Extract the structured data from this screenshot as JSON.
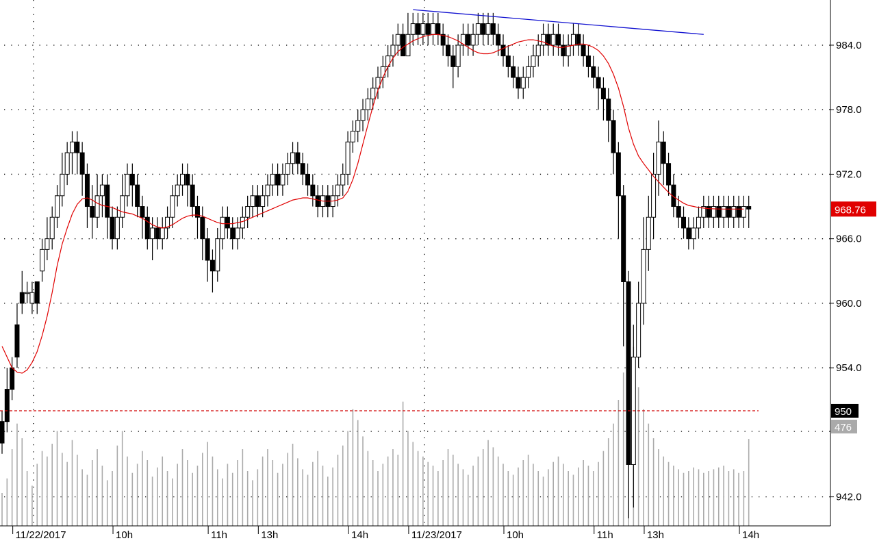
{
  "chart_data": {
    "type": "candlestick",
    "x_axis_labels": [
      {
        "text": "11/22/2017",
        "bar": 2
      },
      {
        "text": "10h",
        "bar": 22
      },
      {
        "text": "11h",
        "bar": 41
      },
      {
        "text": "13h",
        "bar": 51
      },
      {
        "text": "14h",
        "bar": 69
      },
      {
        "text": "11/23/2017",
        "bar": 81
      },
      {
        "text": "10h",
        "bar": 100
      },
      {
        "text": "11h",
        "bar": 118
      },
      {
        "text": "13h",
        "bar": 128
      },
      {
        "text": "14h",
        "bar": 147
      }
    ],
    "day_separators": [
      3,
      81
    ],
    "y_ticks": [
      942.0,
      954.0,
      960.0,
      966.0,
      972.0,
      978.0,
      984.0
    ],
    "price_range": [
      939.3,
      988.2
    ],
    "last_price_label": {
      "text": "968.76",
      "value": 968.76,
      "color": "#e00000"
    },
    "level_line": {
      "text": "950",
      "value": 950,
      "color": "#d00000"
    },
    "volume_label": {
      "text": "476",
      "value": 476
    },
    "volume_scale_max": 1200,
    "candles": [
      [
        949,
        947,
        950,
        946
      ],
      [
        952,
        949,
        954,
        948
      ],
      [
        954,
        952,
        955,
        951
      ],
      [
        958,
        955,
        960,
        954
      ],
      [
        961,
        960,
        963,
        959
      ],
      [
        961,
        961,
        962,
        960
      ],
      [
        960,
        961,
        962,
        959
      ],
      [
        962,
        960,
        962,
        959
      ],
      [
        963,
        965,
        966,
        962
      ],
      [
        965,
        966,
        968,
        964
      ],
      [
        966,
        968,
        969,
        965
      ],
      [
        968,
        970,
        971,
        967
      ],
      [
        970,
        972,
        974,
        969
      ],
      [
        972,
        974,
        975,
        971
      ],
      [
        974,
        975,
        976,
        972
      ],
      [
        975,
        974,
        976,
        972
      ],
      [
        974,
        972,
        975,
        970
      ],
      [
        972,
        969,
        973,
        967
      ],
      [
        969,
        968,
        971,
        966
      ],
      [
        968,
        970,
        972,
        967
      ],
      [
        970,
        971,
        972,
        968
      ],
      [
        971,
        968,
        972,
        966
      ],
      [
        968,
        966,
        969,
        965
      ],
      [
        966,
        968,
        969,
        965
      ],
      [
        968,
        970,
        972,
        967
      ],
      [
        970,
        972,
        973,
        969
      ],
      [
        972,
        971,
        973,
        969
      ],
      [
        971,
        969,
        972,
        968
      ],
      [
        969,
        968,
        970,
        966
      ],
      [
        968,
        966,
        969,
        965
      ],
      [
        966,
        967,
        968,
        964
      ],
      [
        967,
        966,
        968,
        965
      ],
      [
        966,
        967,
        968,
        965
      ],
      [
        967,
        968,
        969,
        966
      ],
      [
        968,
        970,
        971,
        967
      ],
      [
        970,
        971,
        972,
        969
      ],
      [
        971,
        972,
        973,
        970
      ],
      [
        972,
        971,
        973,
        969
      ],
      [
        971,
        969,
        972,
        968
      ],
      [
        969,
        968,
        970,
        966
      ],
      [
        968,
        966,
        969,
        964
      ],
      [
        966,
        964,
        967,
        962
      ],
      [
        964,
        963,
        965,
        961
      ],
      [
        963,
        966,
        967,
        962
      ],
      [
        966,
        968,
        969,
        965
      ],
      [
        968,
        967,
        969,
        966
      ],
      [
        967,
        966,
        968,
        965
      ],
      [
        966,
        967,
        968,
        965
      ],
      [
        967,
        968,
        969,
        966
      ],
      [
        968,
        969,
        970,
        967
      ],
      [
        969,
        970,
        971,
        968
      ],
      [
        970,
        969,
        971,
        968
      ],
      [
        969,
        970,
        971,
        968
      ],
      [
        970,
        971,
        972,
        969
      ],
      [
        971,
        972,
        973,
        970
      ],
      [
        972,
        971,
        973,
        970
      ],
      [
        971,
        972,
        973,
        970
      ],
      [
        972,
        973,
        974,
        971
      ],
      [
        973,
        974,
        975,
        972
      ],
      [
        974,
        973,
        975,
        972
      ],
      [
        973,
        972,
        974,
        971
      ],
      [
        972,
        971,
        973,
        970
      ],
      [
        971,
        970,
        972,
        969
      ],
      [
        970,
        969,
        971,
        968
      ],
      [
        969,
        970,
        971,
        968
      ],
      [
        970,
        969,
        971,
        968
      ],
      [
        969,
        970,
        971,
        968
      ],
      [
        970,
        971,
        972,
        969
      ],
      [
        971,
        972,
        973,
        970
      ],
      [
        972,
        975,
        976,
        971
      ],
      [
        975,
        976,
        977,
        974
      ],
      [
        976,
        977,
        978,
        975
      ],
      [
        977,
        978,
        979,
        976
      ],
      [
        978,
        979,
        980,
        977
      ],
      [
        979,
        980,
        981,
        978
      ],
      [
        980,
        981,
        982,
        979
      ],
      [
        981,
        982,
        983,
        980
      ],
      [
        982,
        983,
        984,
        981
      ],
      [
        983,
        984,
        985,
        982
      ],
      [
        984,
        985,
        986,
        983
      ],
      [
        985,
        983,
        986,
        983
      ],
      [
        983,
        985,
        987,
        983
      ],
      [
        985,
        986,
        987,
        984
      ],
      [
        986,
        985,
        987,
        984
      ],
      [
        985,
        986,
        987,
        984
      ],
      [
        986,
        985,
        987,
        984
      ],
      [
        985,
        986,
        987,
        984
      ],
      [
        986,
        985,
        987,
        984
      ],
      [
        985,
        984,
        986,
        983
      ],
      [
        984,
        983,
        985,
        982
      ],
      [
        983,
        982,
        984,
        980
      ],
      [
        982,
        984,
        985,
        981
      ],
      [
        984,
        985,
        986,
        983
      ],
      [
        985,
        984,
        986,
        983
      ],
      [
        984,
        985,
        986,
        983
      ],
      [
        985,
        986,
        987,
        984
      ],
      [
        986,
        985,
        987,
        984
      ],
      [
        985,
        986,
        987,
        984
      ],
      [
        986,
        985,
        987,
        984
      ],
      [
        985,
        984,
        986,
        983
      ],
      [
        984,
        983,
        985,
        982
      ],
      [
        983,
        982,
        984,
        981
      ],
      [
        982,
        981,
        983,
        980
      ],
      [
        981,
        980,
        982,
        979
      ],
      [
        980,
        981,
        982,
        979
      ],
      [
        981,
        982,
        983,
        980
      ],
      [
        982,
        983,
        984,
        981
      ],
      [
        983,
        984,
        985,
        982
      ],
      [
        984,
        985,
        986,
        983
      ],
      [
        985,
        984,
        986,
        983
      ],
      [
        984,
        985,
        986,
        983
      ],
      [
        985,
        984,
        986,
        983
      ],
      [
        984,
        983,
        985,
        982
      ],
      [
        983,
        984,
        985,
        982
      ],
      [
        984,
        985,
        986,
        983
      ],
      [
        985,
        984,
        986,
        983
      ],
      [
        984,
        983,
        985,
        982
      ],
      [
        983,
        982,
        984,
        981
      ],
      [
        982,
        981,
        983,
        980
      ],
      [
        981,
        980,
        982,
        978
      ],
      [
        980,
        979,
        981,
        977
      ],
      [
        979,
        977,
        980,
        975
      ],
      [
        977,
        974,
        978,
        972
      ],
      [
        974,
        970,
        975,
        966
      ],
      [
        970,
        962,
        971,
        956
      ],
      [
        962,
        945,
        963,
        940
      ],
      [
        945,
        955,
        958,
        941
      ],
      [
        955,
        960,
        962,
        954
      ],
      [
        960,
        965,
        968,
        958
      ],
      [
        965,
        968,
        970,
        963
      ],
      [
        968,
        972,
        974,
        966
      ],
      [
        972,
        975,
        977,
        970
      ],
      [
        975,
        973,
        976,
        971
      ],
      [
        973,
        971,
        974,
        970
      ],
      [
        971,
        969,
        972,
        968
      ],
      [
        969,
        968,
        970,
        967
      ],
      [
        968,
        967,
        969,
        966
      ],
      [
        967,
        966,
        968,
        965
      ],
      [
        966,
        967,
        968,
        965
      ],
      [
        967,
        968,
        969,
        966
      ],
      [
        968,
        969,
        970,
        967
      ],
      [
        969,
        968,
        970,
        967
      ],
      [
        968,
        969,
        970,
        967
      ],
      [
        969,
        968,
        970,
        967
      ],
      [
        968,
        969,
        970,
        967
      ],
      [
        969,
        968,
        970,
        967
      ],
      [
        968,
        969,
        970,
        967
      ],
      [
        969,
        968,
        970,
        967
      ],
      [
        968,
        969,
        970,
        967
      ],
      [
        969,
        968.76,
        970,
        967
      ]
    ],
    "volumes": [
      180,
      260,
      420,
      560,
      480,
      300,
      220,
      340,
      410,
      380,
      450,
      520,
      400,
      350,
      470,
      390,
      310,
      280,
      360,
      420,
      330,
      250,
      300,
      440,
      520,
      380,
      290,
      340,
      410,
      360,
      270,
      320,
      380,
      300,
      260,
      340,
      420,
      360,
      290,
      330,
      400,
      460,
      380,
      310,
      260,
      340,
      290,
      360,
      420,
      300,
      250,
      310,
      380,
      420,
      360,
      290,
      340,
      400,
      450,
      370,
      310,
      280,
      350,
      410,
      330,
      270,
      320,
      390,
      440,
      520,
      640,
      580,
      490,
      410,
      360,
      300,
      340,
      380,
      420,
      390,
      680,
      520,
      460,
      410,
      380,
      350,
      330,
      300,
      360,
      420,
      390,
      340,
      310,
      280,
      330,
      380,
      420,
      470,
      430,
      380,
      340,
      300,
      280,
      320,
      360,
      390,
      340,
      300,
      270,
      310,
      350,
      380,
      340,
      300,
      280,
      320,
      360,
      330,
      300,
      350,
      410,
      480,
      560,
      690,
      840,
      1180,
      980,
      760,
      640,
      560,
      480,
      420,
      380,
      350,
      330,
      310,
      290,
      300,
      320,
      310,
      290,
      300,
      310,
      320,
      330,
      300,
      310,
      290,
      300,
      476
    ],
    "moving_average": [
      956,
      955,
      954,
      953.6,
      953.5,
      953.8,
      954.5,
      955.5,
      957,
      958.8,
      961,
      963.5,
      965.5,
      967,
      968.3,
      969.2,
      969.7,
      969.8,
      969.6,
      969.3,
      969.1,
      969.0,
      968.9,
      968.7,
      968.5,
      968.4,
      968.3,
      968.1,
      967.9,
      967.6,
      967.3,
      967.1,
      967.0,
      967.1,
      967.3,
      967.6,
      967.9,
      968.1,
      968.2,
      968.2,
      968.1,
      967.9,
      967.7,
      967.5,
      967.4,
      967.4,
      967.4,
      967.5,
      967.6,
      967.8,
      968.0,
      968.2,
      968.4,
      968.6,
      968.8,
      969.0,
      969.2,
      969.4,
      969.6,
      969.7,
      969.8,
      969.8,
      969.7,
      969.6,
      969.5,
      969.5,
      969.5,
      969.6,
      969.8,
      970.4,
      971.5,
      973.0,
      974.8,
      976.6,
      978.3,
      979.8,
      981.0,
      982.0,
      982.8,
      983.4,
      983.8,
      984.1,
      984.4,
      984.6,
      984.8,
      984.9,
      985.0,
      985.0,
      984.9,
      984.8,
      984.6,
      984.4,
      984.1,
      983.8,
      983.5,
      983.3,
      983.2,
      983.2,
      983.3,
      983.5,
      983.7,
      983.9,
      984.1,
      984.3,
      984.4,
      984.5,
      984.5,
      984.4,
      984.3,
      984.1,
      983.9,
      983.8,
      983.8,
      983.9,
      984.0,
      984.1,
      984.1,
      984.0,
      983.8,
      983.5,
      983.0,
      982.3,
      981.3,
      980.0,
      978.3,
      976.3,
      974.8,
      973.7,
      973.0,
      972.4,
      971.8,
      971.3,
      970.8,
      970.3,
      969.9,
      969.6,
      969.3,
      969.1,
      969.0,
      968.9,
      968.85,
      968.8,
      968.78,
      968.77,
      968.76,
      968.76,
      968.76,
      968.76,
      968.76
    ]
  }
}
